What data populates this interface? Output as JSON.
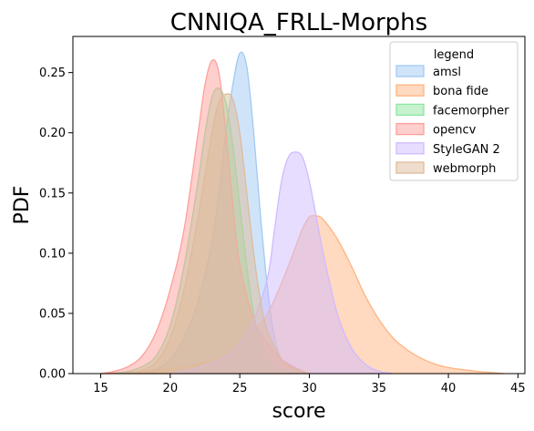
{
  "chart_data": {
    "type": "area",
    "title": "CNNIQA_FRLL-Morphs",
    "xlabel": "score",
    "ylabel": "PDF",
    "xlim": [
      13,
      45.5
    ],
    "ylim": [
      0,
      0.28
    ],
    "xticks": [
      "15",
      "20",
      "25",
      "30",
      "35",
      "40",
      "45"
    ],
    "yticks": [
      "0.00",
      "0.05",
      "0.10",
      "0.15",
      "0.20",
      "0.25"
    ],
    "grid": false,
    "legend_title": "legend",
    "legend_position": "top-right",
    "series": [
      {
        "name": "amsl",
        "color": "#a1c9f4",
        "points": [
          [
            17.5,
            0
          ],
          [
            19,
            0.004
          ],
          [
            20,
            0.012
          ],
          [
            21,
            0.03
          ],
          [
            22,
            0.06
          ],
          [
            23,
            0.11
          ],
          [
            23.5,
            0.15
          ],
          [
            24,
            0.2
          ],
          [
            24.5,
            0.24
          ],
          [
            25,
            0.266
          ],
          [
            25.5,
            0.255
          ],
          [
            26,
            0.2
          ],
          [
            26.5,
            0.13
          ],
          [
            27,
            0.07
          ],
          [
            27.5,
            0.03
          ],
          [
            28,
            0.012
          ],
          [
            29,
            0.003
          ],
          [
            30,
            0
          ]
        ]
      },
      {
        "name": "bona fide",
        "color": "#ffb482",
        "points": [
          [
            15,
            0
          ],
          [
            18,
            0.002
          ],
          [
            20,
            0.004
          ],
          [
            22,
            0.008
          ],
          [
            24,
            0.016
          ],
          [
            26,
            0.035
          ],
          [
            27,
            0.05
          ],
          [
            28,
            0.075
          ],
          [
            29,
            0.105
          ],
          [
            29.5,
            0.12
          ],
          [
            30,
            0.13
          ],
          [
            30.5,
            0.131
          ],
          [
            31,
            0.128
          ],
          [
            32,
            0.112
          ],
          [
            33,
            0.09
          ],
          [
            34,
            0.065
          ],
          [
            35,
            0.045
          ],
          [
            36,
            0.03
          ],
          [
            37,
            0.02
          ],
          [
            38,
            0.013
          ],
          [
            39,
            0.008
          ],
          [
            40,
            0.005
          ],
          [
            42,
            0.002
          ],
          [
            44,
            0
          ]
        ]
      },
      {
        "name": "facemorpher",
        "color": "#8de5a1",
        "points": [
          [
            16,
            0
          ],
          [
            17,
            0.002
          ],
          [
            18,
            0.006
          ],
          [
            19,
            0.015
          ],
          [
            20,
            0.04
          ],
          [
            21,
            0.09
          ],
          [
            22,
            0.16
          ],
          [
            22.5,
            0.2
          ],
          [
            23,
            0.23
          ],
          [
            23.5,
            0.237
          ],
          [
            24,
            0.225
          ],
          [
            24.5,
            0.19
          ],
          [
            25,
            0.14
          ],
          [
            25.5,
            0.09
          ],
          [
            26,
            0.05
          ],
          [
            26.5,
            0.025
          ],
          [
            27,
            0.01
          ],
          [
            28,
            0.003
          ],
          [
            29,
            0
          ]
        ]
      },
      {
        "name": "opencv",
        "color": "#ff9f9b",
        "points": [
          [
            15,
            0
          ],
          [
            16,
            0.002
          ],
          [
            17,
            0.006
          ],
          [
            18,
            0.015
          ],
          [
            19,
            0.035
          ],
          [
            20,
            0.07
          ],
          [
            21,
            0.12
          ],
          [
            22,
            0.2
          ],
          [
            22.5,
            0.24
          ],
          [
            23,
            0.26
          ],
          [
            23.5,
            0.25
          ],
          [
            24,
            0.2
          ],
          [
            24.5,
            0.14
          ],
          [
            25,
            0.09
          ],
          [
            26,
            0.045
          ],
          [
            27,
            0.025
          ],
          [
            28,
            0.012
          ],
          [
            29,
            0.005
          ],
          [
            30,
            0
          ]
        ]
      },
      {
        "name": "StyleGAN 2",
        "color": "#d0bbff",
        "points": [
          [
            20,
            0
          ],
          [
            22,
            0.005
          ],
          [
            24,
            0.015
          ],
          [
            25,
            0.025
          ],
          [
            26,
            0.045
          ],
          [
            27,
            0.08
          ],
          [
            27.5,
            0.12
          ],
          [
            28,
            0.16
          ],
          [
            28.5,
            0.18
          ],
          [
            29,
            0.184
          ],
          [
            29.5,
            0.18
          ],
          [
            30,
            0.16
          ],
          [
            30.5,
            0.13
          ],
          [
            31,
            0.1
          ],
          [
            32,
            0.05
          ],
          [
            33,
            0.022
          ],
          [
            34,
            0.008
          ],
          [
            35,
            0.002
          ],
          [
            36,
            0
          ]
        ]
      },
      {
        "name": "webmorph",
        "color": "#debb9b",
        "points": [
          [
            17,
            0
          ],
          [
            18,
            0.003
          ],
          [
            19,
            0.01
          ],
          [
            20,
            0.03
          ],
          [
            21,
            0.07
          ],
          [
            22,
            0.13
          ],
          [
            23,
            0.2
          ],
          [
            23.5,
            0.225
          ],
          [
            24,
            0.232
          ],
          [
            24.5,
            0.228
          ],
          [
            25,
            0.2
          ],
          [
            25.5,
            0.15
          ],
          [
            26,
            0.1
          ],
          [
            26.5,
            0.06
          ],
          [
            27,
            0.035
          ],
          [
            28,
            0.012
          ],
          [
            29,
            0.004
          ],
          [
            30,
            0
          ]
        ]
      }
    ]
  }
}
